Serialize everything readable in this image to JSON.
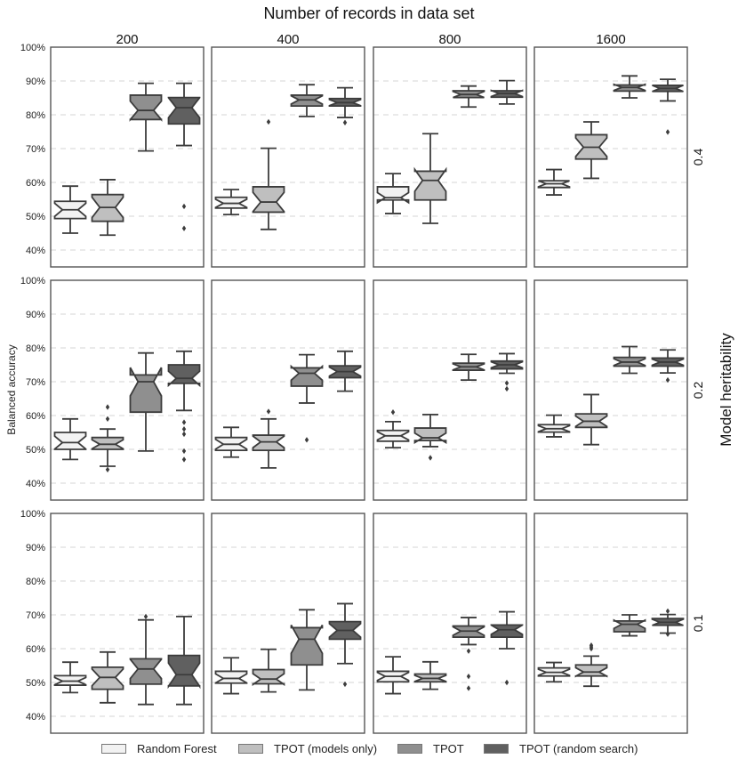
{
  "chart_data": {
    "type": "box",
    "title": "Number of records in data set",
    "ylabel": "Balanced accuracy",
    "row_label_title": "Model heritability",
    "ylim": [
      35,
      100
    ],
    "yticks": [
      "100%",
      "90%",
      "80%",
      "70%",
      "60%",
      "50%",
      "40%"
    ],
    "ytick_values": [
      100,
      90,
      80,
      70,
      60,
      50,
      40
    ],
    "grid": "horizontal dashed",
    "columns": [
      "200",
      "400",
      "800",
      "1600"
    ],
    "rows": [
      "0.4",
      "0.2",
      "0.1"
    ],
    "series": [
      {
        "name": "Random Forest",
        "color": "#f2f2f2"
      },
      {
        "name": "TPOT (models only)",
        "color": "#bfbfbf"
      },
      {
        "name": "TPOT",
        "color": "#8f8f8f"
      },
      {
        "name": "TPOT (random search)",
        "color": "#606060"
      }
    ],
    "legend_position": "bottom",
    "panels": [
      {
        "row": "0.4",
        "col": "200",
        "boxes": [
          {
            "series": "Random Forest",
            "whislo": 45.0,
            "q1": 49.3,
            "med": 51.9,
            "q3": 54.4,
            "whishi": 58.9,
            "fliers": []
          },
          {
            "series": "TPOT (models only)",
            "whislo": 44.4,
            "q1": 48.5,
            "med": 52.6,
            "q3": 56.4,
            "whishi": 60.8,
            "fliers": []
          },
          {
            "series": "TPOT",
            "whislo": 69.3,
            "q1": 78.6,
            "med": 81.3,
            "q3": 85.8,
            "whishi": 89.3,
            "fliers": []
          },
          {
            "series": "TPOT (random search)",
            "whislo": 70.9,
            "q1": 77.3,
            "med": 82.1,
            "q3": 85.1,
            "whishi": 89.3,
            "fliers": [
              52.9,
              46.4
            ]
          }
        ]
      },
      {
        "row": "0.4",
        "col": "400",
        "boxes": [
          {
            "series": "Random Forest",
            "whislo": 50.5,
            "q1": 52.4,
            "med": 53.8,
            "q3": 55.6,
            "whishi": 57.9,
            "fliers": []
          },
          {
            "series": "TPOT (models only)",
            "whislo": 46.1,
            "q1": 51.2,
            "med": 54.2,
            "q3": 58.7,
            "whishi": 70.1,
            "fliers": [
              77.9
            ]
          },
          {
            "series": "TPOT",
            "whislo": 79.5,
            "q1": 82.6,
            "med": 84.4,
            "q3": 85.8,
            "whishi": 88.9,
            "fliers": []
          },
          {
            "series": "TPOT (random search)",
            "whislo": 79.2,
            "q1": 82.6,
            "med": 83.6,
            "q3": 84.8,
            "whishi": 88.0,
            "fliers": [
              77.7
            ]
          }
        ]
      },
      {
        "row": "0.4",
        "col": "800",
        "boxes": [
          {
            "series": "Random Forest",
            "whislo": 50.8,
            "q1": 54.8,
            "med": 55.5,
            "q3": 58.7,
            "whishi": 62.6,
            "fliers": []
          },
          {
            "series": "TPOT (models only)",
            "whislo": 47.9,
            "q1": 54.8,
            "med": 60.6,
            "q3": 63.3,
            "whishi": 74.4,
            "fliers": []
          },
          {
            "series": "TPOT",
            "whislo": 82.3,
            "q1": 85.1,
            "med": 86.0,
            "q3": 87.1,
            "whishi": 88.5,
            "fliers": []
          },
          {
            "series": "TPOT (random search)",
            "whislo": 83.2,
            "q1": 85.2,
            "med": 86.3,
            "q3": 87.1,
            "whishi": 90.1,
            "fliers": []
          }
        ]
      },
      {
        "row": "0.4",
        "col": "1600",
        "boxes": [
          {
            "series": "Random Forest",
            "whislo": 56.3,
            "q1": 58.5,
            "med": 59.6,
            "q3": 60.5,
            "whishi": 63.8,
            "fliers": []
          },
          {
            "series": "TPOT (models only)",
            "whislo": 61.2,
            "q1": 66.9,
            "med": 70.4,
            "q3": 74.1,
            "whishi": 77.9,
            "fliers": []
          },
          {
            "series": "TPOT",
            "whislo": 85.0,
            "q1": 87.0,
            "med": 88.1,
            "q3": 88.8,
            "whishi": 91.5,
            "fliers": []
          },
          {
            "series": "TPOT (random search)",
            "whislo": 84.1,
            "q1": 86.9,
            "med": 87.8,
            "q3": 88.7,
            "whishi": 90.5,
            "fliers": [
              74.9
            ]
          }
        ]
      },
      {
        "row": "0.2",
        "col": "200",
        "boxes": [
          {
            "series": "Random Forest",
            "whislo": 47.0,
            "q1": 50.0,
            "med": 52.0,
            "q3": 55.0,
            "whishi": 59.0,
            "fliers": []
          },
          {
            "series": "TPOT (models only)",
            "whislo": 45.0,
            "q1": 50.0,
            "med": 51.5,
            "q3": 53.5,
            "whishi": 56.0,
            "fliers": [
              62.5,
              59.0,
              44.0
            ]
          },
          {
            "series": "TPOT",
            "whislo": 49.5,
            "q1": 61.0,
            "med": 70.0,
            "q3": 72.0,
            "whishi": 78.5,
            "fliers": []
          },
          {
            "series": "TPOT (random search)",
            "whislo": 61.5,
            "q1": 69.5,
            "med": 71.0,
            "q3": 75.0,
            "whishi": 79.0,
            "fliers": [
              58.0,
              56.0,
              54.5,
              49.5,
              47.0
            ]
          }
        ]
      },
      {
        "row": "0.2",
        "col": "400",
        "boxes": [
          {
            "series": "Random Forest",
            "whislo": 47.7,
            "q1": 49.7,
            "med": 51.5,
            "q3": 53.5,
            "whishi": 56.5,
            "fliers": []
          },
          {
            "series": "TPOT (models only)",
            "whislo": 44.5,
            "q1": 49.7,
            "med": 52.2,
            "q3": 54.2,
            "whishi": 59.0,
            "fliers": [
              61.2
            ]
          },
          {
            "series": "TPOT",
            "whislo": 63.7,
            "q1": 68.7,
            "med": 72.5,
            "q3": 74.1,
            "whishi": 78.0,
            "fliers": [
              52.8
            ]
          },
          {
            "series": "TPOT (random search)",
            "whislo": 67.2,
            "q1": 71.2,
            "med": 73.0,
            "q3": 74.7,
            "whishi": 79.0,
            "fliers": []
          }
        ]
      },
      {
        "row": "0.2",
        "col": "800",
        "boxes": [
          {
            "series": "Random Forest",
            "whislo": 50.5,
            "q1": 52.4,
            "med": 54.0,
            "q3": 55.6,
            "whishi": 58.2,
            "fliers": [
              61.0
            ]
          },
          {
            "series": "TPOT (models only)",
            "whislo": 50.8,
            "q1": 52.6,
            "med": 53.4,
            "q3": 56.3,
            "whishi": 60.3,
            "fliers": [
              47.5
            ]
          },
          {
            "series": "TPOT",
            "whislo": 70.5,
            "q1": 73.4,
            "med": 74.4,
            "q3": 75.5,
            "whishi": 78.1,
            "fliers": []
          },
          {
            "series": "TPOT (random search)",
            "whislo": 72.5,
            "q1": 73.8,
            "med": 75.0,
            "q3": 76.1,
            "whishi": 78.3,
            "fliers": [
              69.6,
              67.9
            ]
          }
        ]
      },
      {
        "row": "0.2",
        "col": "1600",
        "boxes": [
          {
            "series": "Random Forest",
            "whislo": 53.7,
            "q1": 55.1,
            "med": 56.1,
            "q3": 57.3,
            "whishi": 60.1,
            "fliers": []
          },
          {
            "series": "TPOT (models only)",
            "whislo": 51.4,
            "q1": 56.5,
            "med": 58.3,
            "q3": 60.5,
            "whishi": 66.2,
            "fliers": []
          },
          {
            "series": "TPOT",
            "whislo": 72.5,
            "q1": 74.6,
            "med": 75.8,
            "q3": 77.2,
            "whishi": 80.4,
            "fliers": []
          },
          {
            "series": "TPOT (random search)",
            "whislo": 72.6,
            "q1": 74.6,
            "med": 75.8,
            "q3": 77.0,
            "whishi": 79.4,
            "fliers": [
              70.5
            ]
          }
        ]
      },
      {
        "row": "0.1",
        "col": "200",
        "boxes": [
          {
            "series": "Random Forest",
            "whislo": 47.0,
            "q1": 49.2,
            "med": 50.4,
            "q3": 52.0,
            "whishi": 56.0,
            "fliers": []
          },
          {
            "series": "TPOT (models only)",
            "whislo": 44.0,
            "q1": 48.0,
            "med": 51.5,
            "q3": 54.5,
            "whishi": 59.0,
            "fliers": []
          },
          {
            "series": "TPOT",
            "whislo": 43.5,
            "q1": 49.5,
            "med": 54.0,
            "q3": 57.0,
            "whishi": 68.5,
            "fliers": [
              69.5
            ]
          },
          {
            "series": "TPOT (random search)",
            "whislo": 43.5,
            "q1": 49.0,
            "med": 52.3,
            "q3": 58.0,
            "whishi": 69.5,
            "fliers": []
          }
        ]
      },
      {
        "row": "0.1",
        "col": "400",
        "boxes": [
          {
            "series": "Random Forest",
            "whislo": 46.7,
            "q1": 49.8,
            "med": 51.2,
            "q3": 53.3,
            "whishi": 57.3,
            "fliers": []
          },
          {
            "series": "TPOT (models only)",
            "whislo": 47.2,
            "q1": 49.6,
            "med": 51.0,
            "q3": 53.8,
            "whishi": 59.8,
            "fliers": []
          },
          {
            "series": "TPOT",
            "whislo": 47.8,
            "q1": 55.2,
            "med": 62.8,
            "q3": 66.2,
            "whishi": 71.5,
            "fliers": []
          },
          {
            "series": "TPOT (random search)",
            "whislo": 55.6,
            "q1": 62.8,
            "med": 65.4,
            "q3": 68.0,
            "whishi": 73.3,
            "fliers": [
              49.5
            ]
          }
        ]
      },
      {
        "row": "0.1",
        "col": "800",
        "boxes": [
          {
            "series": "Random Forest",
            "whislo": 46.7,
            "q1": 50.2,
            "med": 51.8,
            "q3": 53.3,
            "whishi": 57.6,
            "fliers": []
          },
          {
            "series": "TPOT (models only)",
            "whislo": 48.0,
            "q1": 50.2,
            "med": 51.2,
            "q3": 52.5,
            "whishi": 56.1,
            "fliers": []
          },
          {
            "series": "TPOT",
            "whislo": 61.2,
            "q1": 63.4,
            "med": 65.2,
            "q3": 66.7,
            "whishi": 69.2,
            "fliers": [
              59.3,
              51.8,
              48.3
            ]
          },
          {
            "series": "TPOT (random search)",
            "whislo": 60.0,
            "q1": 63.4,
            "med": 65.6,
            "q3": 67.0,
            "whishi": 70.9,
            "fliers": [
              50.0
            ]
          }
        ]
      },
      {
        "row": "0.1",
        "col": "1600",
        "boxes": [
          {
            "series": "Random Forest",
            "whislo": 50.2,
            "q1": 51.9,
            "med": 53.0,
            "q3": 54.3,
            "whishi": 55.9,
            "fliers": []
          },
          {
            "series": "TPOT (models only)",
            "whislo": 48.9,
            "q1": 51.9,
            "med": 53.1,
            "q3": 55.2,
            "whishi": 57.8,
            "fliers": [
              61.0,
              60.5,
              60.0
            ]
          },
          {
            "series": "TPOT",
            "whislo": 63.8,
            "q1": 65.0,
            "med": 67.2,
            "q3": 68.2,
            "whishi": 70.0,
            "fliers": []
          },
          {
            "series": "TPOT (random search)",
            "whislo": 64.6,
            "q1": 66.9,
            "med": 67.8,
            "q3": 68.9,
            "whishi": 70.1,
            "fliers": [
              71.1,
              64.3
            ]
          }
        ]
      }
    ]
  }
}
